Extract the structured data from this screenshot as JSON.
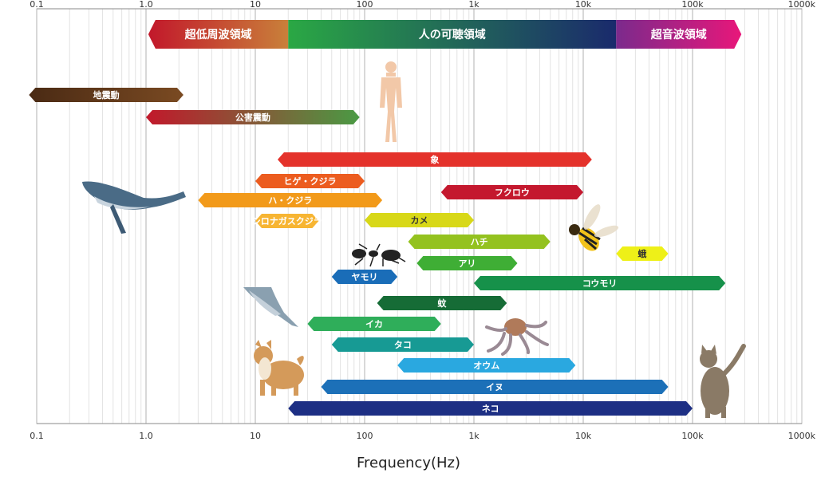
{
  "chart_data": {
    "type": "bar",
    "orientation": "horizontal",
    "x_scale": "log",
    "xlim": [
      0.1,
      1000000
    ],
    "xlabel": "Frequency(Hz)",
    "ylabel": "",
    "title": "",
    "grid": true,
    "ticks": [
      {
        "value": 0.1,
        "label": "0.1"
      },
      {
        "value": 1,
        "label": "1.0"
      },
      {
        "value": 10,
        "label": "10"
      },
      {
        "value": 100,
        "label": "100"
      },
      {
        "value": 1000,
        "label": "1k"
      },
      {
        "value": 10000,
        "label": "10k"
      },
      {
        "value": 100000,
        "label": "100k"
      },
      {
        "value": 1000000,
        "label": "1000k"
      }
    ],
    "bands": [
      {
        "label": "超低周波領域",
        "start": 1.05,
        "end": 20,
        "colors": [
          "#c2182b",
          "#c9803a"
        ]
      },
      {
        "label": "人の可聴領域",
        "start": 20,
        "end": 20000,
        "colors": [
          "#2aa844",
          "#1a2a6c"
        ]
      },
      {
        "label": "超音波領域",
        "start": 20000,
        "end": 280000,
        "colors": [
          "#7b2a8c",
          "#e8177a"
        ]
      }
    ],
    "ranges": [
      {
        "label": "地震動",
        "start": 0.085,
        "end": 2.2,
        "colors": [
          "#4a2a14",
          "#7a4a22"
        ],
        "dark_text": false
      },
      {
        "label": "公害震動",
        "start": 1.0,
        "end": 90,
        "colors": [
          "#c2182b",
          "#4a9a44"
        ],
        "dark_text": false
      },
      {
        "label": "象",
        "start": 16,
        "end": 12000,
        "colors": [
          "#e4322b",
          "#e4322b"
        ],
        "dark_text": false
      },
      {
        "label": "ヒゲ・クジラ",
        "start": 10,
        "end": 100,
        "colors": [
          "#ec5c1f",
          "#ec5c1f"
        ],
        "dark_text": false
      },
      {
        "label": "フクロウ",
        "start": 500,
        "end": 10000,
        "colors": [
          "#c4182e",
          "#c4182e"
        ],
        "dark_text": false
      },
      {
        "label": "ハ・クジラ",
        "start": 3,
        "end": 145,
        "colors": [
          "#f29a1a",
          "#f29a1a"
        ],
        "dark_text": false
      },
      {
        "label": "シロナガスクジラ",
        "start": 10,
        "end": 38,
        "colors": [
          "#f7b533",
          "#f7b533"
        ],
        "dark_text": false
      },
      {
        "label": "カメ",
        "start": 100,
        "end": 1000,
        "colors": [
          "#d8d818",
          "#d8d818"
        ],
        "dark_text": true
      },
      {
        "label": "ハチ",
        "start": 250,
        "end": 5000,
        "colors": [
          "#94c21f",
          "#94c21f"
        ],
        "dark_text": false
      },
      {
        "label": "蛾",
        "start": 20000,
        "end": 60000,
        "colors": [
          "#eef018",
          "#eef018"
        ],
        "dark_text": true
      },
      {
        "label": "アリ",
        "start": 300,
        "end": 2500,
        "colors": [
          "#3fae35",
          "#3fae35"
        ],
        "dark_text": false
      },
      {
        "label": "ヤモリ",
        "start": 50,
        "end": 200,
        "colors": [
          "#1a6db8",
          "#1a6db8"
        ],
        "dark_text": false
      },
      {
        "label": "コウモリ",
        "start": 1000,
        "end": 200000,
        "colors": [
          "#16914a",
          "#16914a"
        ],
        "dark_text": false
      },
      {
        "label": "蚊",
        "start": 130,
        "end": 2000,
        "colors": [
          "#166c36",
          "#166c36"
        ],
        "dark_text": false
      },
      {
        "label": "イカ",
        "start": 30,
        "end": 500,
        "colors": [
          "#2fae5a",
          "#2fae5a"
        ],
        "dark_text": false
      },
      {
        "label": "タコ",
        "start": 50,
        "end": 1000,
        "colors": [
          "#179a94",
          "#179a94"
        ],
        "dark_text": false
      },
      {
        "label": "オウム",
        "start": 200,
        "end": 8500,
        "colors": [
          "#2aa8e0",
          "#2aa8e0"
        ],
        "dark_text": false
      },
      {
        "label": "イヌ",
        "start": 40,
        "end": 60000,
        "colors": [
          "#1c70b8",
          "#1c70b8"
        ],
        "dark_text": false
      },
      {
        "label": "ネコ",
        "start": 20,
        "end": 100000,
        "colors": [
          "#1d2f84",
          "#1d2f84"
        ],
        "dark_text": false
      }
    ]
  },
  "illustrations": [
    {
      "name": "human-figure",
      "kind": "human"
    },
    {
      "name": "whale-illustration",
      "kind": "whale"
    },
    {
      "name": "ant-illustration",
      "kind": "ant"
    },
    {
      "name": "bee-illustration",
      "kind": "bee"
    },
    {
      "name": "squid-illustration",
      "kind": "squid"
    },
    {
      "name": "octopus-illustration",
      "kind": "octopus"
    },
    {
      "name": "dog-illustration",
      "kind": "dog"
    },
    {
      "name": "cat-illustration",
      "kind": "cat"
    }
  ]
}
